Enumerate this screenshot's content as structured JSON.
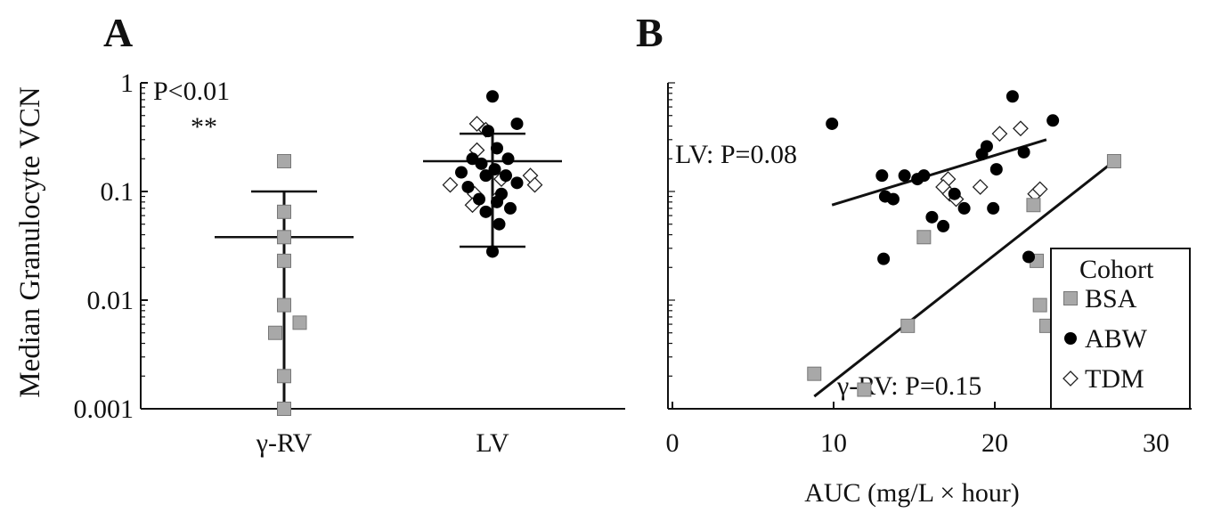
{
  "panels": [
    {
      "letter": "A",
      "ylabel": "Median Granulocyte VCN",
      "stat_label": "P<0.01",
      "significance": "**"
    },
    {
      "letter": "B",
      "xlabel": "AUC (mg/L × hour)",
      "legend_title": "Cohort"
    }
  ],
  "colors": {
    "BSA": "#a8a8a8",
    "ABW": "#000000",
    "TDM": "#ffffff",
    "axis": "#111111"
  },
  "chart_data": [
    {
      "type": "scatter",
      "panel": "A",
      "y_scale": "log",
      "ylim": [
        0.001,
        1
      ],
      "y_ticks": [
        "1",
        "0.1",
        "0.01",
        "0.001"
      ],
      "y_tick_values": [
        1,
        0.1,
        0.01,
        0.001
      ],
      "categories": [
        "γ-RV",
        "LV"
      ],
      "annotation": "P<0.01 **",
      "groups": [
        {
          "category": "γ-RV",
          "mean": 0.038,
          "error_upper": 0.1,
          "error_lower": 0.001,
          "points": [
            {
              "cohort": "BSA",
              "y": 0.19
            },
            {
              "cohort": "BSA",
              "y": 0.065
            },
            {
              "cohort": "BSA",
              "y": 0.038
            },
            {
              "cohort": "BSA",
              "y": 0.023
            },
            {
              "cohort": "BSA",
              "y": 0.009
            },
            {
              "cohort": "BSA",
              "y": 0.0062
            },
            {
              "cohort": "BSA",
              "y": 0.005
            },
            {
              "cohort": "BSA",
              "y": 0.002
            },
            {
              "cohort": "BSA",
              "y": 0.001
            }
          ]
        },
        {
          "category": "LV",
          "mean": 0.19,
          "error_upper": 0.34,
          "error_lower": 0.031,
          "points": [
            {
              "cohort": "ABW",
              "y": 0.75,
              "jitter": 0
            },
            {
              "cohort": "ABW",
              "y": 0.42,
              "jitter": 0.55
            },
            {
              "cohort": "ABW",
              "y": 0.36,
              "jitter": -0.1
            },
            {
              "cohort": "ABW",
              "y": 0.25,
              "jitter": 0.1
            },
            {
              "cohort": "ABW",
              "y": 0.2,
              "jitter": -0.45
            },
            {
              "cohort": "ABW",
              "y": 0.2,
              "jitter": 0.35
            },
            {
              "cohort": "ABW",
              "y": 0.18,
              "jitter": -0.25
            },
            {
              "cohort": "ABW",
              "y": 0.16,
              "jitter": 0.05
            },
            {
              "cohort": "ABW",
              "y": 0.15,
              "jitter": -0.7
            },
            {
              "cohort": "ABW",
              "y": 0.14,
              "jitter": -0.15
            },
            {
              "cohort": "ABW",
              "y": 0.14,
              "jitter": 0.3
            },
            {
              "cohort": "ABW",
              "y": 0.12,
              "jitter": 0.55
            },
            {
              "cohort": "ABW",
              "y": 0.11,
              "jitter": -0.55
            },
            {
              "cohort": "ABW",
              "y": 0.095,
              "jitter": 0.2
            },
            {
              "cohort": "ABW",
              "y": 0.085,
              "jitter": -0.3
            },
            {
              "cohort": "ABW",
              "y": 0.08,
              "jitter": 0.1
            },
            {
              "cohort": "ABW",
              "y": 0.07,
              "jitter": 0.4
            },
            {
              "cohort": "ABW",
              "y": 0.065,
              "jitter": -0.15
            },
            {
              "cohort": "ABW",
              "y": 0.05,
              "jitter": 0.15
            },
            {
              "cohort": "ABW",
              "y": 0.028,
              "jitter": 0
            },
            {
              "cohort": "TDM",
              "y": 0.42,
              "jitter": -0.35
            },
            {
              "cohort": "TDM",
              "y": 0.37,
              "jitter": -0.15
            },
            {
              "cohort": "TDM",
              "y": 0.24,
              "jitter": -0.35
            },
            {
              "cohort": "TDM",
              "y": 0.14,
              "jitter": 0.85
            },
            {
              "cohort": "TDM",
              "y": 0.13,
              "jitter": 0.2
            },
            {
              "cohort": "TDM",
              "y": 0.115,
              "jitter": -0.95
            },
            {
              "cohort": "TDM",
              "y": 0.115,
              "jitter": 0.95
            },
            {
              "cohort": "TDM",
              "y": 0.095,
              "jitter": -0.4
            },
            {
              "cohort": "TDM",
              "y": 0.09,
              "jitter": 0.15
            },
            {
              "cohort": "TDM",
              "y": 0.075,
              "jitter": -0.45
            }
          ]
        }
      ]
    },
    {
      "type": "scatter",
      "panel": "B",
      "y_scale": "log",
      "ylim": [
        0.001,
        1
      ],
      "xlim": [
        0,
        30
      ],
      "x_ticks": [
        0,
        10,
        20,
        30
      ],
      "xlabel": "AUC (mg/L × hour)",
      "legend": {
        "title": "Cohort",
        "entries": [
          "BSA",
          "ABW",
          "TDM"
        ],
        "position": "bottom-right"
      },
      "series": [
        {
          "name": "BSA",
          "marker": "square",
          "points": [
            {
              "x": 27.4,
              "y": 0.19
            },
            {
              "x": 22.4,
              "y": 0.075
            },
            {
              "x": 15.6,
              "y": 0.038
            },
            {
              "x": 22.6,
              "y": 0.023
            },
            {
              "x": 22.8,
              "y": 0.009
            },
            {
              "x": 14.6,
              "y": 0.0058
            },
            {
              "x": 23.2,
              "y": 0.0058
            },
            {
              "x": 8.8,
              "y": 0.0021
            },
            {
              "x": 11.9,
              "y": 0.0015
            }
          ]
        },
        {
          "name": "ABW",
          "marker": "circle",
          "points": [
            {
              "x": 9.9,
              "y": 0.42
            },
            {
              "x": 21.1,
              "y": 0.75
            },
            {
              "x": 23.6,
              "y": 0.45
            },
            {
              "x": 13,
              "y": 0.14
            },
            {
              "x": 13.2,
              "y": 0.09
            },
            {
              "x": 13.7,
              "y": 0.085
            },
            {
              "x": 14.4,
              "y": 0.14
            },
            {
              "x": 15.2,
              "y": 0.13
            },
            {
              "x": 15.6,
              "y": 0.14
            },
            {
              "x": 16.1,
              "y": 0.058
            },
            {
              "x": 16.8,
              "y": 0.048
            },
            {
              "x": 17.5,
              "y": 0.095
            },
            {
              "x": 18.1,
              "y": 0.07
            },
            {
              "x": 19.2,
              "y": 0.22
            },
            {
              "x": 19.5,
              "y": 0.26
            },
            {
              "x": 20.1,
              "y": 0.16
            },
            {
              "x": 21.8,
              "y": 0.23
            },
            {
              "x": 19.9,
              "y": 0.07
            },
            {
              "x": 13.1,
              "y": 0.024
            },
            {
              "x": 22.1,
              "y": 0.025
            }
          ]
        },
        {
          "name": "TDM",
          "marker": "diamond",
          "points": [
            {
              "x": 17.1,
              "y": 0.13
            },
            {
              "x": 16.8,
              "y": 0.11
            },
            {
              "x": 17.2,
              "y": 0.095
            },
            {
              "x": 17.6,
              "y": 0.085
            },
            {
              "x": 19.1,
              "y": 0.11
            },
            {
              "x": 20.3,
              "y": 0.34
            },
            {
              "x": 21.6,
              "y": 0.38
            },
            {
              "x": 22.5,
              "y": 0.095
            },
            {
              "x": 22.8,
              "y": 0.105
            }
          ]
        }
      ],
      "fits": [
        {
          "label": "LV: P=0.08",
          "x": [
            9.9,
            23.2
          ],
          "y": [
            0.075,
            0.3
          ]
        },
        {
          "label": "γ-RV: P=0.15",
          "x": [
            8.8,
            27.4
          ],
          "y": [
            0.0013,
            0.19
          ]
        }
      ]
    }
  ]
}
